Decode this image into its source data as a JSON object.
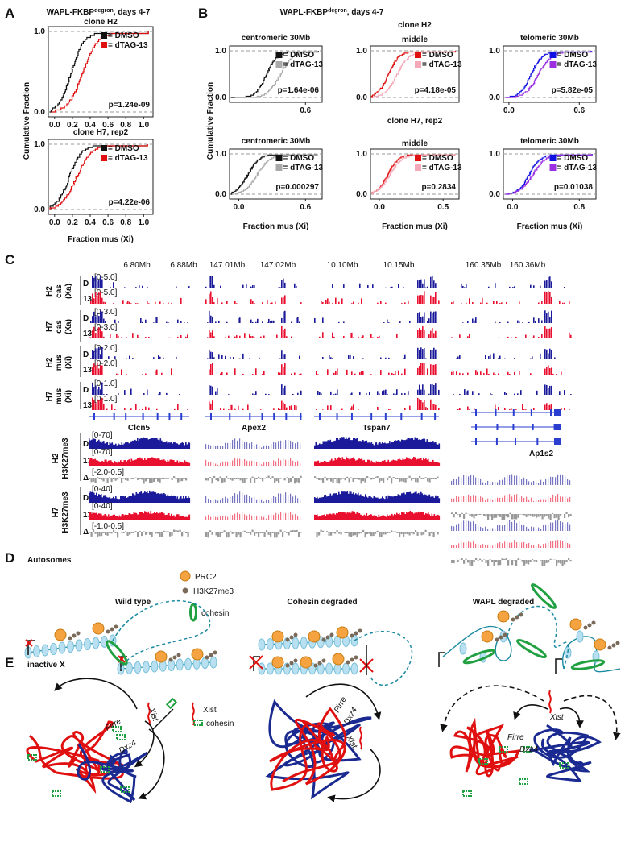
{
  "A": {
    "letter": "A",
    "title": {
      "main": "WAPL-FKBP",
      "sup": "degron",
      "rest": ", days 4-7"
    },
    "y_label": "Cumulative Fraction",
    "x_label": "Fraction mus (Xi)",
    "plots": [
      {
        "title": "clone H2",
        "legend": [
          "= DMSO",
          "= dTAG-13"
        ],
        "p_value": "p=1.24e-09",
        "yticks": [
          "1.0",
          "0.0"
        ],
        "xticks": [
          "0.0",
          "0.2",
          "0.4",
          "0.6",
          "0.8",
          "1.0"
        ]
      },
      {
        "title": "clone H7, rep2",
        "legend": [
          "= DMSO",
          "= dTAG-13"
        ],
        "p_value": "p=4.22e-06",
        "yticks": [
          "1.0",
          "0.0"
        ],
        "xticks": [
          "0.0",
          "0.2",
          "0.4",
          "0.6",
          "0.8",
          "1.0"
        ]
      }
    ]
  },
  "B": {
    "letter": "B",
    "title": {
      "main": "WAPL-FKBP",
      "sup": "degron",
      "rest": ", days 4-7"
    },
    "group_titles": [
      "clone H2",
      "clone H7, rep2"
    ],
    "y_label": "Cumulative Fraction",
    "x_label": "Fraction mus (Xi)",
    "plots": [
      {
        "title": "centromeric 30Mb",
        "legend": [
          "= DMSO",
          "= dTAG-13"
        ],
        "p_value": "p=1.64e-06",
        "yticks": [
          "1.0",
          "0.0"
        ],
        "xticks": [
          "0.6"
        ]
      },
      {
        "title": "middle",
        "legend": [
          "= DMSO",
          "= dTAG-13"
        ],
        "p_value": "p=4.18e-05",
        "yticks": [
          "1.0",
          "0.0"
        ],
        "xticks": []
      },
      {
        "title": "telomeric 30Mb",
        "legend": [
          "= DMSO",
          "= dTAG-13"
        ],
        "p_value": "p=5.82e-05",
        "yticks": [
          "1.0",
          "0.0"
        ],
        "xticks": [
          "0.0",
          "0.6"
        ]
      },
      {
        "title": "centromeric 30Mb",
        "legend": [
          "= DMSO",
          "= dTAG-13"
        ],
        "p_value": "p=0.000297",
        "yticks": [
          "1.0",
          "0.0"
        ],
        "xticks": [
          "0.0",
          "0.6"
        ]
      },
      {
        "title": "middle",
        "legend": [
          "= DMSO",
          "= dTAG-13"
        ],
        "p_value": "p=0.2834",
        "yticks": [
          "1.0",
          "0.0"
        ],
        "xticks": [
          "0.0",
          "0.5"
        ]
      },
      {
        "title": "telomeric 30Mb",
        "legend": [
          "= DMSO",
          "= dTAG-13"
        ],
        "p_value": "p=0.01038",
        "yticks": [
          "1.0",
          "0.0"
        ],
        "xticks": [
          "0.0",
          "0.8"
        ]
      }
    ]
  },
  "C": {
    "letter": "C",
    "coordinates": [
      "6.80Mb",
      "6.88Mb",
      "147.01Mb",
      "147.02Mb",
      "10.10Mb",
      "10.15Mb",
      "160.35Mb",
      "160.36Mb"
    ],
    "allele_tracks": [
      {
        "label": [
          "H2",
          "cas",
          "(Xa)"
        ],
        "rows": [
          "D",
          "13"
        ],
        "ranges": [
          "[0-5.0]",
          "[0-5.0]"
        ]
      },
      {
        "label": [
          "H7",
          "cas",
          "(Xa)"
        ],
        "rows": [
          "D",
          "13"
        ],
        "ranges": [
          "[0-3.0]",
          "[0-3.0]"
        ]
      },
      {
        "label": [
          "H2",
          "mus",
          "(Xi)"
        ],
        "rows": [
          "D",
          "13"
        ],
        "ranges": [
          "[0-2.0]",
          "[0-2.0]"
        ]
      },
      {
        "label": [
          "H7",
          "mus",
          "(Xi)"
        ],
        "rows": [
          "D",
          "13"
        ],
        "ranges": [
          "[0-1.0]",
          "[0-1.0]"
        ]
      }
    ],
    "genes": [
      "Clcn5",
      "Apex2",
      "Tspan7",
      "Ap1s2"
    ],
    "chip_tracks": [
      {
        "label": [
          "H2",
          "H3K27me3"
        ],
        "rows": [
          "D",
          "13",
          "Δ"
        ],
        "ranges": [
          "[0-70]",
          "[0-70]",
          "[-2.0-0.5]"
        ]
      },
      {
        "label": [
          "H7",
          "H3K27me3"
        ],
        "rows": [
          "D",
          "13",
          "Δ"
        ],
        "ranges": [
          "[0-40]",
          "[0-40]",
          "[-1.0-0.5]"
        ]
      }
    ]
  },
  "D": {
    "letter": "D",
    "title": "Autosomes",
    "legend": [
      "PRC2",
      "H3K27me3",
      "cohesin"
    ],
    "conditions": [
      "Wild type",
      "Cohesin degraded",
      "WAPL degraded"
    ]
  },
  "E": {
    "letter": "E",
    "title": "inactive X",
    "legend": [
      "Xist",
      "cohesin"
    ],
    "diagrams": [
      {
        "firre": "Firre",
        "dxz4": "Dxz4",
        "xist": "Xist"
      },
      {
        "firre": "Firre",
        "dxz4": "Dxz4",
        "xist": "Xist"
      },
      {
        "firre": "Firre",
        "dxz4": "Dxz4",
        "xist": "Xist"
      }
    ]
  }
}
